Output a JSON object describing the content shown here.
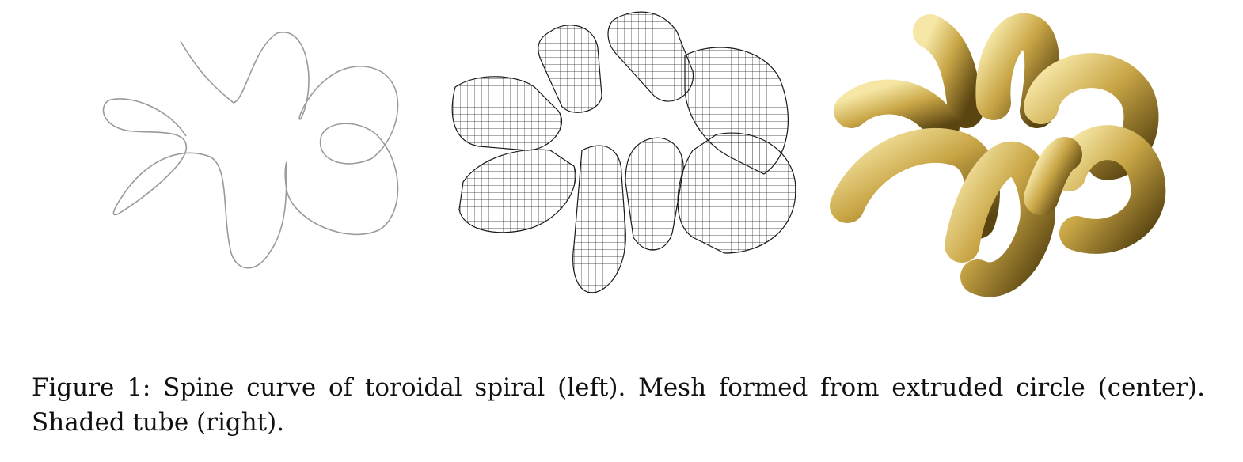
{
  "figure": {
    "caption": "Figure 1: Spine curve of toroidal spiral (left). Mesh formed from extruded circle (center). Shaded tube (right).",
    "panels": [
      {
        "id": "left",
        "content": "spine-curve",
        "stroke_color": "#9a9a9a"
      },
      {
        "id": "center",
        "content": "wireframe-mesh",
        "stroke_color": "#1a1a1a"
      },
      {
        "id": "right",
        "content": "shaded-tube",
        "fill_color": "#c9a646",
        "highlight_color": "#f6e7a6",
        "shadow_color": "#5a4511"
      }
    ]
  }
}
